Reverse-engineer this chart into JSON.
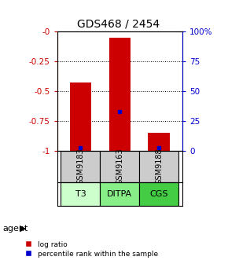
{
  "title": "GDS468 / 2454",
  "samples": [
    "GSM9183",
    "GSM9163",
    "GSM9188"
  ],
  "agents": [
    "T3",
    "DITPA",
    "CGS"
  ],
  "log_ratios": [
    -0.43,
    -0.05,
    -0.85
  ],
  "percentile_ranks": [
    2,
    33,
    2
  ],
  "bar_color": "#cc0000",
  "percentile_color": "#0000cc",
  "left_axis_color": "#cc0000",
  "right_axis_color": "#0000cc",
  "sample_bg": "#cccccc",
  "bar_width": 0.55,
  "legend_log_ratio": "log ratio",
  "legend_percentile": "percentile rank within the sample",
  "agent_colors": [
    "#ccffcc",
    "#88ee88",
    "#44cc44"
  ]
}
